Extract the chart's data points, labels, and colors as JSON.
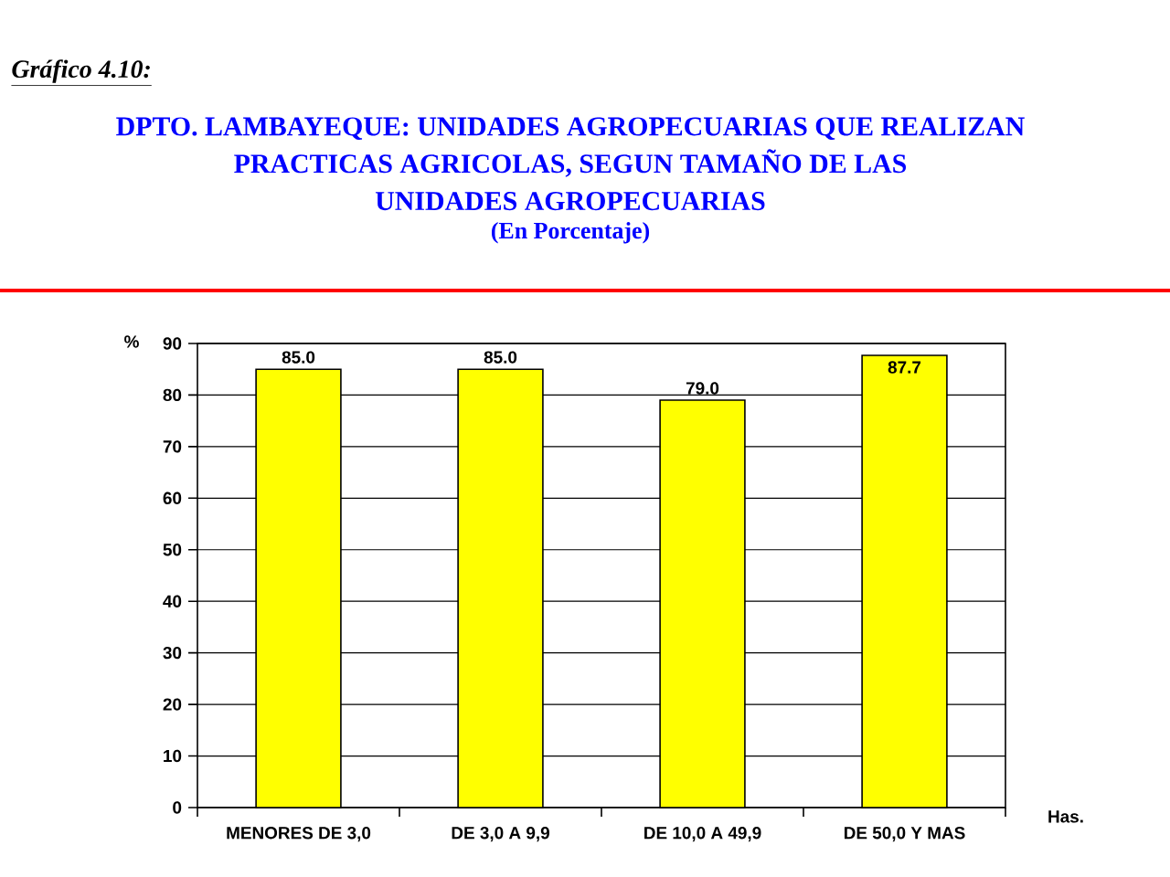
{
  "chart_data": {
    "type": "bar",
    "title": "DPTO. LAMBAYEQUE: UNIDADES AGROPECUARIAS QUE REALIZAN PRACTICAS AGRICOLAS, SEGUN TAMAÑO DE LAS UNIDADES AGROPECUARIAS",
    "subtitle": "(En Porcentaje)",
    "annotations": [
      "Gráfico 4.10:"
    ],
    "xlabel": "Has.",
    "ylabel": "%",
    "categories": [
      "MENORES DE 3,0",
      "DE 3,0 A 9,9",
      "DE 10,0 A 49,9",
      "DE 50,0 Y MAS"
    ],
    "values": [
      85.0,
      85.0,
      79.0,
      87.7
    ],
    "value_labels": [
      "85.0",
      "85.0",
      "79.0",
      "87.7"
    ],
    "color": "#ffff00",
    "ylim": [
      0,
      90
    ],
    "yticks": [
      0,
      10,
      20,
      30,
      40,
      50,
      60,
      70,
      80,
      90
    ],
    "grid": "y"
  }
}
